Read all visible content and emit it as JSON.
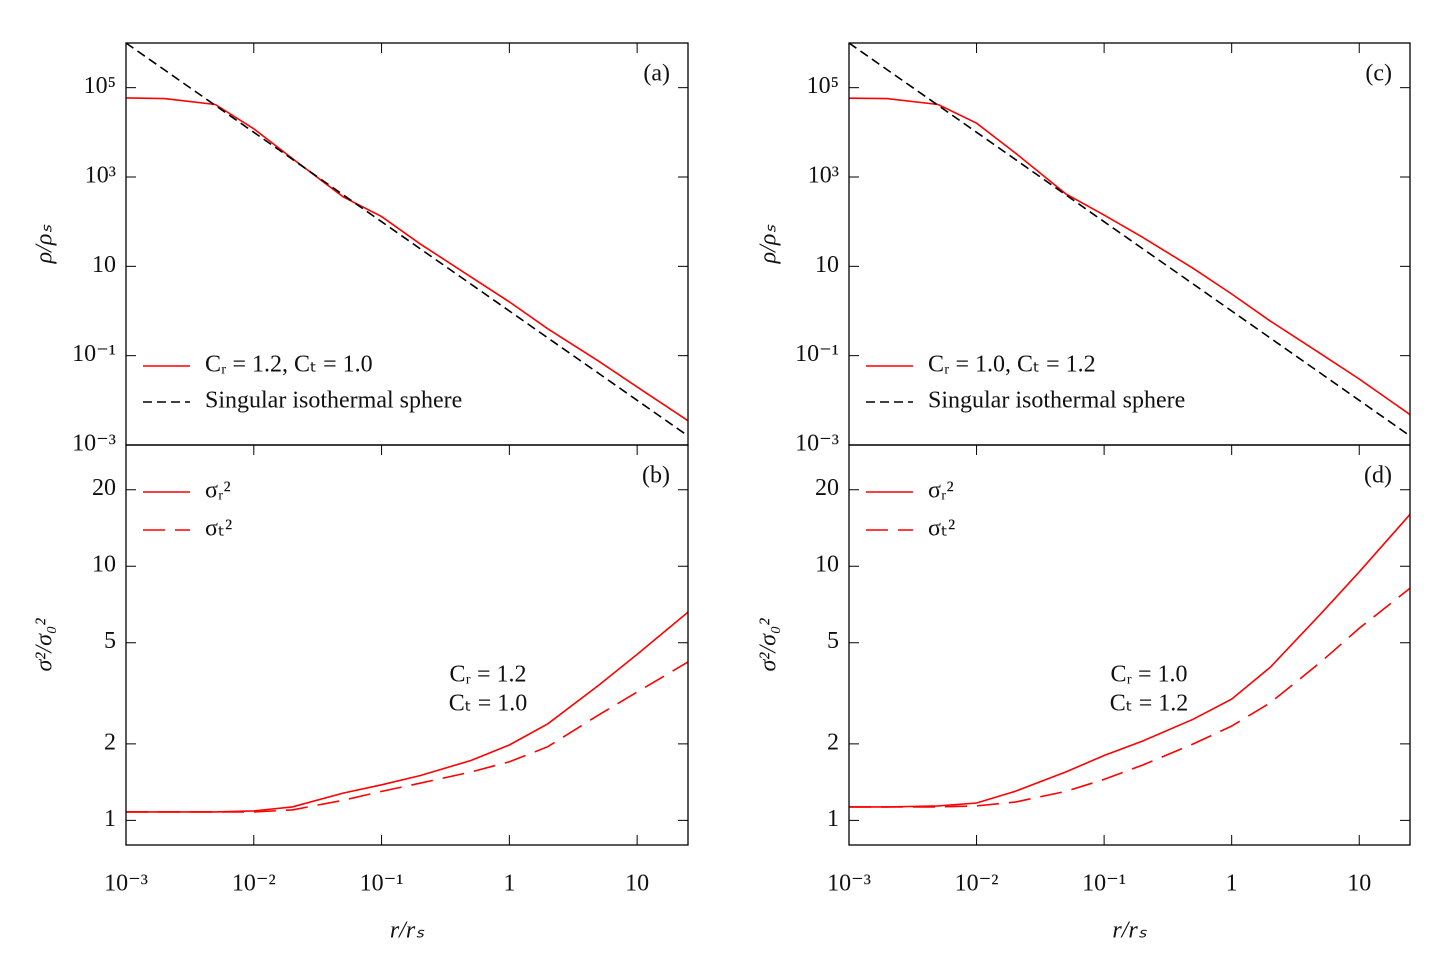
{
  "chart_data": [
    {
      "type": "line",
      "title": "(a)",
      "xscale": "log",
      "yscale": "log",
      "ylabel": "ρ/ρₛ",
      "legend": "lower left",
      "x": [
        0.001,
        0.002,
        0.005,
        0.01,
        0.02,
        0.05,
        0.1,
        0.2,
        0.5,
        1,
        2,
        5,
        10,
        25
      ],
      "series": [
        {
          "name": "Cᵣ = 1.2, Cₜ = 1.0",
          "color": "#ff0000",
          "dash": "solid",
          "values": [
            59000,
            57000,
            42000,
            12000,
            2600,
            360,
            130,
            32,
            5.8,
            1.6,
            0.4,
            0.075,
            0.02,
            0.0035
          ]
        },
        {
          "name": "Singular isothermal sphere",
          "color": "#000000",
          "dash": "dashed",
          "values": [
            1000000,
            250000,
            40000,
            10000,
            2500,
            400,
            100,
            25,
            4,
            1,
            0.25,
            0.04,
            0.01,
            0.0016
          ]
        }
      ],
      "xlim": [
        0.001,
        25
      ],
      "ylim": [
        0.001,
        1000000
      ],
      "yticks": [
        {
          "value": 0.001,
          "label": "10⁻³"
        },
        {
          "value": 0.1,
          "label": "10⁻¹"
        },
        10,
        {
          "value": 1000,
          "label": "10³"
        },
        {
          "value": 100000,
          "label": "10⁵"
        }
      ]
    },
    {
      "type": "line",
      "title": "(b)",
      "xscale": "log",
      "yscale": "log",
      "ylabel": "σ²/σ₀²",
      "xlabel": "r/rₛ",
      "legend": "upper left",
      "annotation": [
        "Cᵣ = 1.2",
        "Cₜ = 1.0"
      ],
      "x": [
        0.001,
        0.002,
        0.005,
        0.01,
        0.02,
        0.05,
        0.1,
        0.2,
        0.5,
        1,
        2,
        5,
        10,
        25
      ],
      "series": [
        {
          "name": "σᵣ²",
          "color": "#ff0000",
          "dash": "solid",
          "values": [
            1.08,
            1.08,
            1.08,
            1.09,
            1.13,
            1.28,
            1.38,
            1.5,
            1.72,
            1.98,
            2.4,
            3.4,
            4.5,
            6.6
          ]
        },
        {
          "name": "σₜ²",
          "color": "#ff0000",
          "dash": "longdash",
          "values": [
            1.08,
            1.08,
            1.08,
            1.08,
            1.1,
            1.2,
            1.3,
            1.4,
            1.55,
            1.7,
            1.95,
            2.6,
            3.2,
            4.2
          ]
        }
      ],
      "xlim": [
        0.001,
        25
      ],
      "ylim": [
        0.8,
        30
      ],
      "xticks": [
        {
          "value": 0.001,
          "label": "10⁻³"
        },
        {
          "value": 0.01,
          "label": "10⁻²"
        },
        {
          "value": 0.1,
          "label": "10⁻¹"
        },
        1,
        10
      ],
      "yticks": [
        1,
        2,
        5,
        10,
        20
      ]
    },
    {
      "type": "line",
      "title": "(c)",
      "xscale": "log",
      "yscale": "log",
      "ylabel": "ρ/ρₛ",
      "legend": "lower left",
      "x": [
        0.001,
        0.002,
        0.005,
        0.01,
        0.02,
        0.05,
        0.1,
        0.2,
        0.5,
        1,
        2,
        5,
        10,
        25
      ],
      "series": [
        {
          "name": "Cᵣ = 1.0, Cₜ = 1.2",
          "color": "#ff0000",
          "dash": "solid",
          "values": [
            58000,
            57000,
            42000,
            16000,
            3500,
            420,
            140,
            45,
            9,
            2.4,
            0.6,
            0.11,
            0.03,
            0.0048
          ]
        },
        {
          "name": "Singular isothermal sphere",
          "color": "#000000",
          "dash": "dashed",
          "values": [
            1000000,
            250000,
            40000,
            10000,
            2500,
            400,
            100,
            25,
            4,
            1,
            0.25,
            0.04,
            0.01,
            0.0016
          ]
        }
      ],
      "xlim": [
        0.001,
        25
      ],
      "ylim": [
        0.001,
        1000000
      ],
      "yticks": [
        {
          "value": 0.001,
          "label": "10⁻³"
        },
        {
          "value": 0.1,
          "label": "10⁻¹"
        },
        10,
        {
          "value": 1000,
          "label": "10³"
        },
        {
          "value": 100000,
          "label": "10⁵"
        }
      ]
    },
    {
      "type": "line",
      "title": "(d)",
      "xscale": "log",
      "yscale": "log",
      "ylabel": "σ²/σ₀²",
      "xlabel": "r/rₛ",
      "legend": "upper left",
      "annotation": [
        "Cᵣ = 1.0",
        "Cₜ = 1.2"
      ],
      "x": [
        0.001,
        0.002,
        0.005,
        0.01,
        0.02,
        0.05,
        0.1,
        0.2,
        0.5,
        1,
        2,
        5,
        10,
        25
      ],
      "series": [
        {
          "name": "σᵣ²",
          "color": "#ff0000",
          "dash": "solid",
          "values": [
            1.13,
            1.13,
            1.14,
            1.17,
            1.3,
            1.55,
            1.8,
            2.05,
            2.5,
            3.0,
            4.0,
            6.5,
            9.5,
            16
          ]
        },
        {
          "name": "σₜ²",
          "color": "#ff0000",
          "dash": "longdash",
          "values": [
            1.13,
            1.13,
            1.13,
            1.14,
            1.18,
            1.3,
            1.45,
            1.65,
            2.0,
            2.35,
            2.9,
            4.2,
            5.7,
            8.2
          ]
        }
      ],
      "xlim": [
        0.001,
        25
      ],
      "ylim": [
        0.8,
        30
      ],
      "xticks": [
        {
          "value": 0.001,
          "label": "10⁻³"
        },
        {
          "value": 0.01,
          "label": "10⁻²"
        },
        {
          "value": 0.1,
          "label": "10⁻¹"
        },
        1,
        10
      ],
      "yticks": [
        1,
        2,
        5,
        10,
        20
      ]
    }
  ]
}
